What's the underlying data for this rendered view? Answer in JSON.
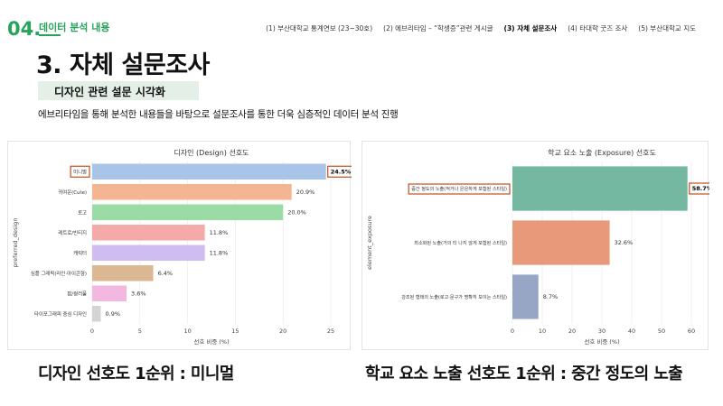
{
  "header": {
    "number": "04.",
    "tag": "데이터 분석 내용",
    "nav": [
      "(1) 부산대학교 통계연보 (23~30호)",
      "(2) 에브리타임 – “학생증”관련 게시글",
      "(3) 자체 설문조사",
      "(4) 타대학 굿즈 조사",
      "(5) 부산대학교 지도"
    ],
    "active_nav": 2
  },
  "main": {
    "title": "3. 자체 설문조사",
    "subtitle": "디자인 관련 설문 시각화",
    "description": "에브리타임을 통해 분석한 내용들을 바탕으로 설문조사를 통한 더욱 심층적인 데이터 분석 진행"
  },
  "captions": {
    "left": "디자인 선호도 1순위 : 미니멀",
    "right": "학교 요소 노출 선호도 1순위 : 중간 정도의 노출"
  },
  "colors": {
    "accent": "#27a35a",
    "highlight_box": "#c0501e"
  },
  "chart_data": [
    {
      "type": "bar",
      "orientation": "horizontal",
      "title": "디자인 (Design) 선호도",
      "xlabel": "선호 비중 (%)",
      "ylabel": "preferred_design",
      "xlim": [
        0,
        25
      ],
      "xticks": [
        "0",
        "5",
        "10",
        "15",
        "20",
        "25"
      ],
      "categories": [
        "미니멀",
        "귀여운(Cute)",
        "로고",
        "레트로/빈티지",
        "캐릭터",
        "심플 그래픽(라인·아이콘형)",
        "팝/컬러풀",
        "타이포그래피 중심 디자인"
      ],
      "values": [
        24.5,
        20.9,
        20.0,
        11.8,
        11.8,
        6.4,
        3.6,
        0.9
      ],
      "labels": [
        "24.5%",
        "20.9%",
        "20.0%",
        "11.8%",
        "11.8%",
        "6.4%",
        "3.6%",
        "0.9%"
      ],
      "colors": [
        "#a8c5e8",
        "#f4b593",
        "#9bdba6",
        "#f5aaaa",
        "#cfbcf0",
        "#dbb794",
        "#f2b8e0",
        "#d4d4d4"
      ],
      "highlight_index": 0
    },
    {
      "type": "bar",
      "orientation": "horizontal",
      "title": "학교 요소 노출 (Exposure) 선호도",
      "xlabel": "선호 비중 (%)",
      "ylabel": "element_exposure",
      "xlim": [
        0,
        60
      ],
      "xticks": [
        "0",
        "10",
        "20",
        "30",
        "40",
        "50",
        "60"
      ],
      "categories": [
        "중간 정도의 노출(적거나 은은하게 포함된 스타일)",
        "최소화된 노출(거의 티 나지 않게 포함된 스타일)",
        "강조된 형태의 노출(로고·문구가 명확히 보이는 스타일)"
      ],
      "values": [
        58.7,
        32.6,
        8.7
      ],
      "labels": [
        "58.7%",
        "32.6%",
        "8.7%"
      ],
      "colors": [
        "#74b8a2",
        "#e8997a",
        "#97a6c4"
      ],
      "highlight_index": 0
    }
  ]
}
